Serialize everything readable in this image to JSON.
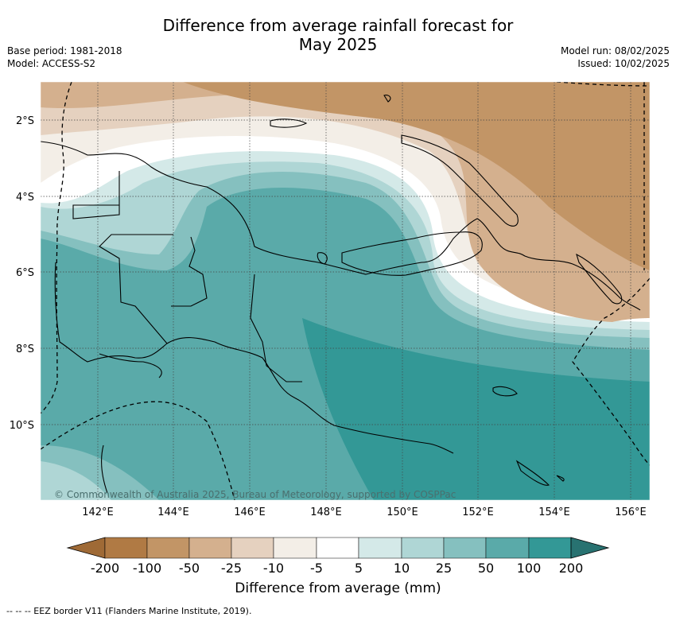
{
  "title_line1": "Difference from average rainfall forecast for",
  "title_line2": "May 2025",
  "meta_left": {
    "base_period": "Base period: 1981-2018",
    "model": "Model: ACCESS-S2"
  },
  "meta_right": {
    "model_run": "Model run: 08/02/2025",
    "issued": "Issued: 10/02/2025"
  },
  "map": {
    "lat_labels": [
      "2°S",
      "4°S",
      "6°S",
      "8°S",
      "10°S"
    ],
    "lat_values": [
      -2,
      -4,
      -6,
      -8,
      -10
    ],
    "lon_labels": [
      "142°E",
      "144°E",
      "146°E",
      "148°E",
      "150°E",
      "152°E",
      "154°E",
      "156°E"
    ],
    "lon_values": [
      142,
      144,
      146,
      148,
      150,
      152,
      154,
      156
    ],
    "extent": {
      "lon_min": 140.5,
      "lon_max": 156.5,
      "lat_min": -12,
      "lat_max": -1
    },
    "copyright": "© Commonwealth of Australia 2025, Bureau of Meteorology, supported by COSPPac"
  },
  "colorbar": {
    "ticks": [
      "-200",
      "-100",
      "-50",
      "-25",
      "-10",
      "-5",
      "5",
      "10",
      "25",
      "50",
      "100",
      "200"
    ],
    "colors": [
      "#9f6a36",
      "#b07a44",
      "#c29566",
      "#d4b08e",
      "#e5d1bf",
      "#f3eee7",
      "#ffffff",
      "#d4e9e8",
      "#afd6d5",
      "#85c0bf",
      "#5aaaa9",
      "#339896",
      "#287271"
    ],
    "label": "Difference from average (mm)"
  },
  "footnote": "--  --  -- EEZ border V11 (Flanders Marine Institute, 2019)."
}
